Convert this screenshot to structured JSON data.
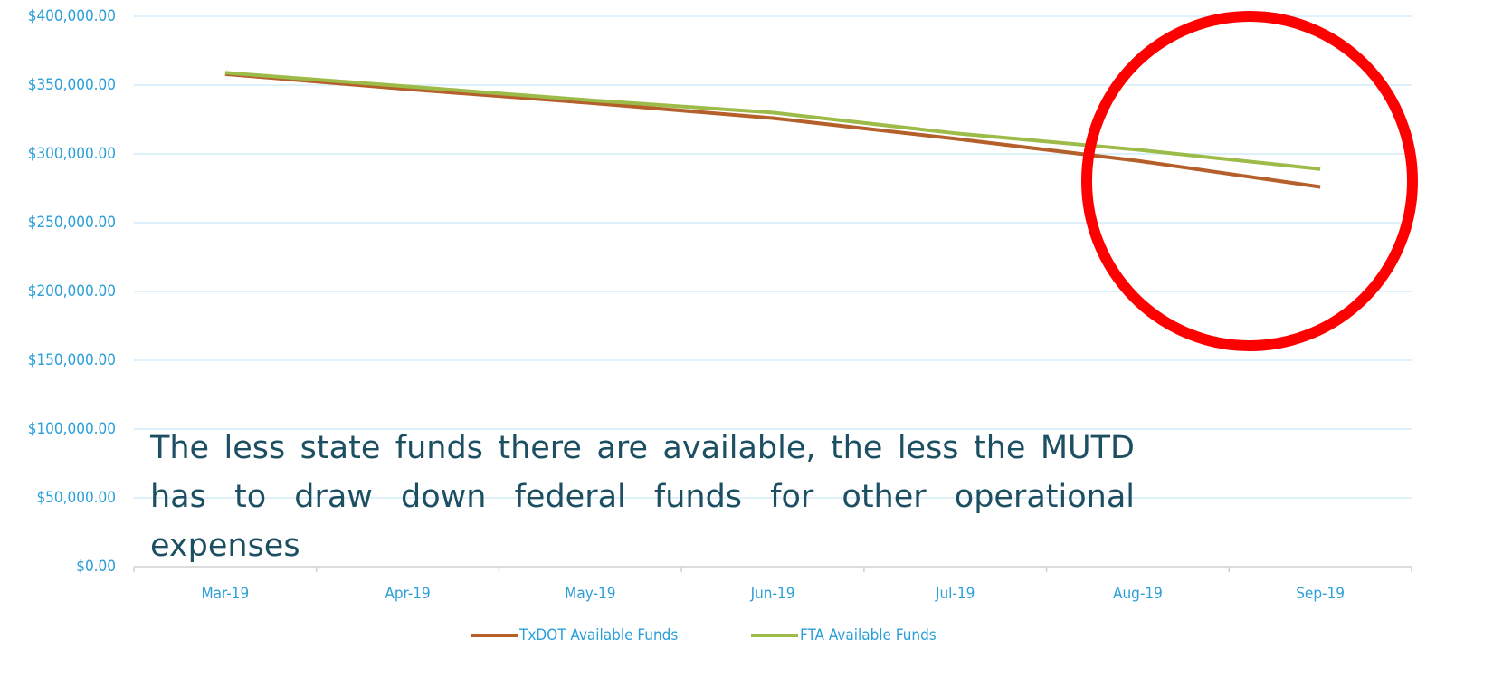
{
  "chart_data": {
    "type": "line",
    "categories": [
      "Mar-19",
      "Apr-19",
      "May-19",
      "Jun-19",
      "Jul-19",
      "Aug-19",
      "Sep-19"
    ],
    "series": [
      {
        "name": "TxDOT Available Funds",
        "color": "#b55f2b",
        "values": [
          358000,
          347000,
          337000,
          326000,
          311000,
          295000,
          276000
        ]
      },
      {
        "name": "FTA Available Funds",
        "color": "#9cbb48",
        "values": [
          359000,
          349000,
          339000,
          330000,
          315000,
          303000,
          289000
        ]
      }
    ],
    "ylim": [
      0,
      400000
    ],
    "yticks": [
      {
        "value": 0,
        "label": "$0.00"
      },
      {
        "value": 50000,
        "label": "$50,000.00"
      },
      {
        "value": 100000,
        "label": "$100,000.00"
      },
      {
        "value": 150000,
        "label": "$150,000.00"
      },
      {
        "value": 200000,
        "label": "$200,000.00"
      },
      {
        "value": 250000,
        "label": "$250,000.00"
      },
      {
        "value": 300000,
        "label": "$300,000.00"
      },
      {
        "value": 350000,
        "label": "$350,000.00"
      },
      {
        "value": 400000,
        "label": "$400,000.00"
      }
    ],
    "grid": true,
    "legend": "bottom",
    "annotation": "The less state funds there are available, the less the MUTD has to draw down federal funds for other operational expenses"
  }
}
